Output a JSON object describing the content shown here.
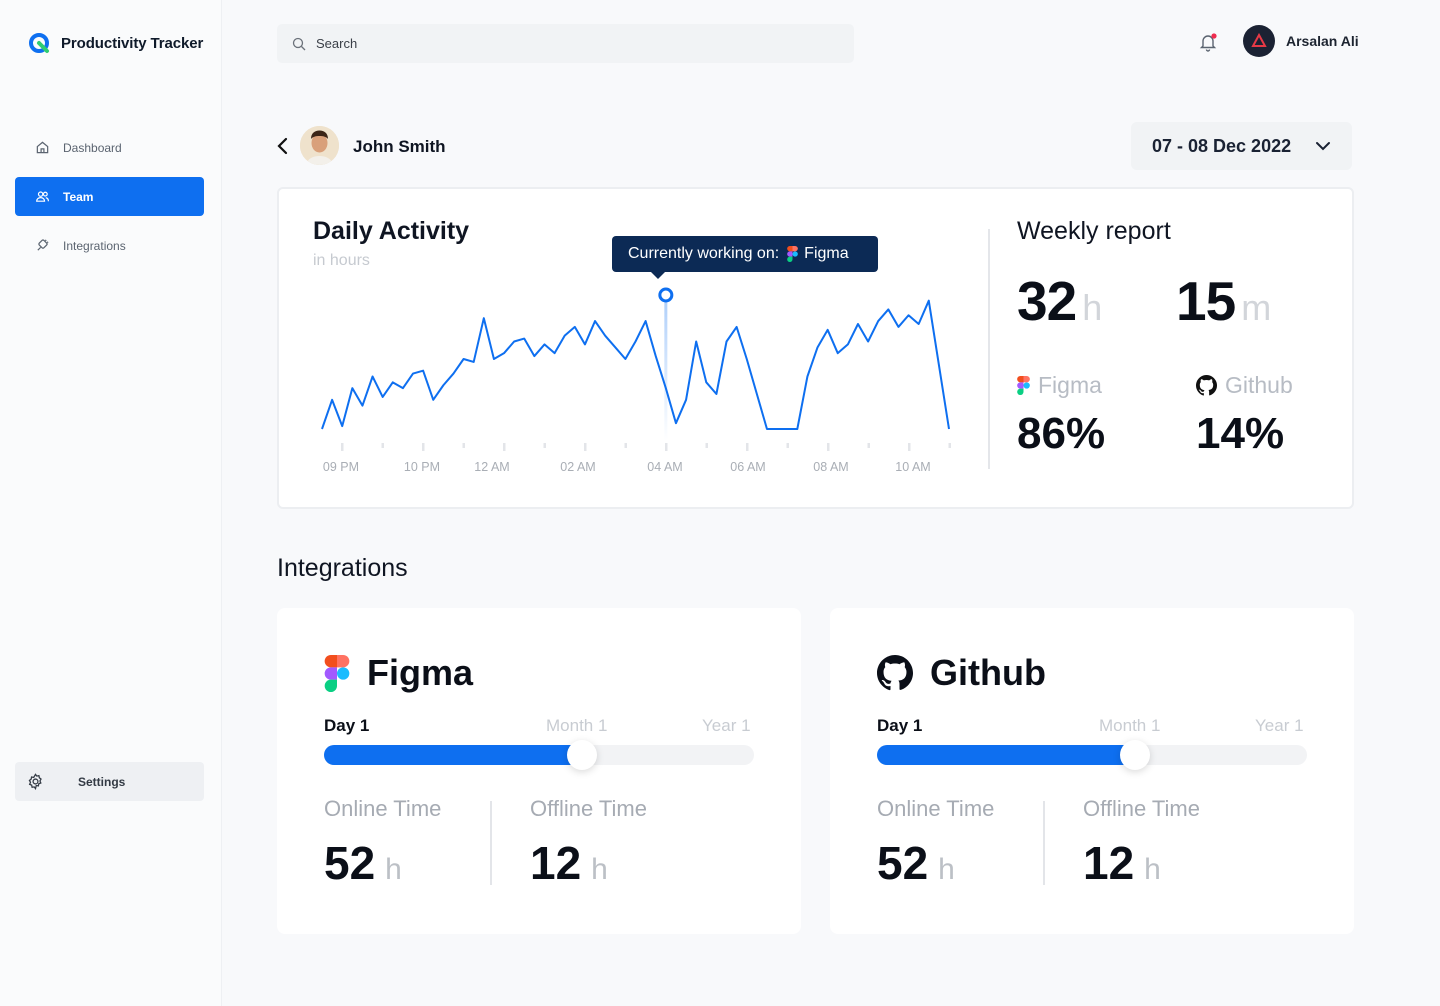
{
  "brand": {
    "name": "Productivity Tracker"
  },
  "sidebar": {
    "items": [
      {
        "label": "Dashboard",
        "icon": "home-icon"
      },
      {
        "label": "Team",
        "icon": "users-icon"
      },
      {
        "label": "Integrations",
        "icon": "plug-icon"
      }
    ],
    "settings_label": "Settings"
  },
  "header": {
    "search_placeholder": "Search",
    "user_name": "Arsalan Ali"
  },
  "profile": {
    "name": "John Smith",
    "date_range": "07 - 08 Dec 2022"
  },
  "activity": {
    "title": "Daily Activity",
    "subtitle": "in hours",
    "tooltip_prefix": "Currently working on:",
    "tooltip_app": "Figma"
  },
  "chart_data": {
    "type": "line",
    "title": "Daily Activity",
    "subtitle": "in hours",
    "x_tick_labels": [
      "09 PM",
      "10 PM",
      "12 AM",
      "02 AM",
      "04 AM",
      "06 AM",
      "08 AM",
      "10 AM"
    ],
    "series": [
      {
        "values": [
          0.0,
          0.5,
          0.05,
          0.7,
          0.4,
          0.9,
          0.55,
          0.8,
          0.7,
          0.95,
          1.0,
          0.5,
          0.75,
          0.95,
          1.2,
          1.15,
          1.9,
          1.2,
          1.3,
          1.5,
          1.55,
          1.25,
          1.45,
          1.3,
          1.6,
          1.75,
          1.45,
          1.85,
          1.6,
          1.4,
          1.2,
          1.5,
          1.85,
          1.25,
          0.7,
          0.1,
          0.5,
          1.5,
          0.8,
          0.6,
          1.5,
          1.75,
          1.2,
          0.6,
          0.0,
          0.0,
          0.0,
          0.0,
          0.9,
          1.4,
          1.7,
          1.3,
          1.45,
          1.8,
          1.5,
          1.85,
          2.05,
          1.75,
          1.95,
          1.8,
          2.2,
          1.1,
          0.0
        ],
        "color": "#0e6ff0"
      }
    ],
    "highlight_index": 34,
    "grid": false,
    "legend": "none"
  },
  "weekly": {
    "title": "Weekly report",
    "hours": "32",
    "hours_unit": "h",
    "minutes": "15",
    "minutes_unit": "m",
    "apps": [
      {
        "name": "Figma",
        "percent": "86%"
      },
      {
        "name": "Github",
        "percent": "14%"
      }
    ]
  },
  "integrations": {
    "title": "Integrations",
    "cards": [
      {
        "name": "Figma",
        "tabs": [
          "Day 1",
          "Month 1",
          "Year 1"
        ],
        "progress": 0.6,
        "online_label": "Online Time",
        "online_value": "52",
        "online_unit": "h",
        "offline_label": "Offline Time",
        "offline_value": "12",
        "offline_unit": "h"
      },
      {
        "name": "Github",
        "tabs": [
          "Day 1",
          "Month 1",
          "Year 1"
        ],
        "progress": 0.6,
        "online_label": "Online Time",
        "online_value": "52",
        "online_unit": "h",
        "offline_label": "Offline Time",
        "offline_value": "12",
        "offline_unit": "h"
      }
    ]
  },
  "colors": {
    "accent": "#0e6ff0",
    "tooltip": "#0c2a55"
  }
}
